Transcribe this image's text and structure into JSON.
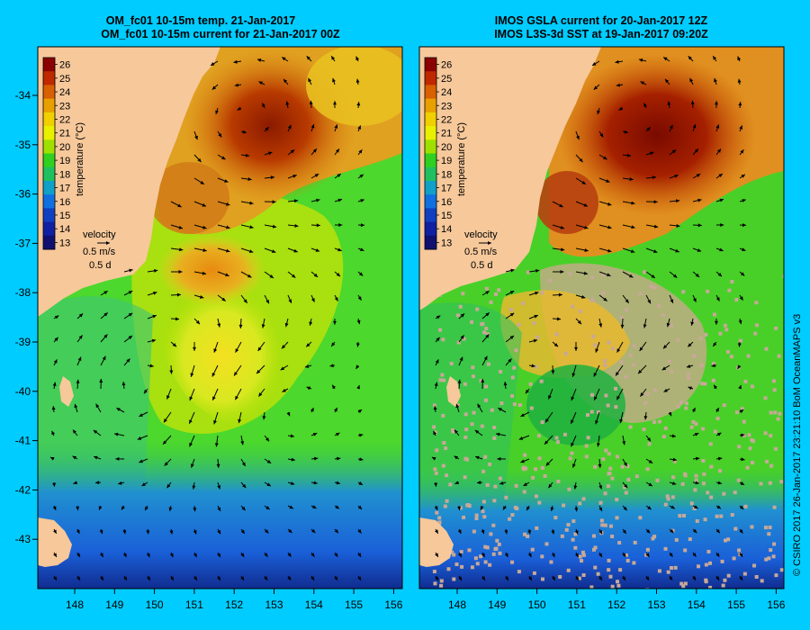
{
  "left_panel": {
    "title_line1": "OM_fc01 10-15m temp. 21-Jan-2017",
    "title_line2": "OM_fc01 10-15m current for 21-Jan-2017 00Z"
  },
  "right_panel": {
    "title_line1": "IMOS GSLA current for 20-Jan-2017 12Z",
    "title_line2": "IMOS L3S-3d SST at 19-Jan-2017 09:20Z"
  },
  "axes": {
    "longitude_ticks": [
      "148",
      "149",
      "150",
      "151",
      "152",
      "153",
      "154",
      "155",
      "156"
    ],
    "latitude_ticks": [
      "-34",
      "-35",
      "-36",
      "-37",
      "-38",
      "-39",
      "-40",
      "-41",
      "-42",
      "-43"
    ]
  },
  "colorbar": {
    "label": "temperature (°C)",
    "ticks": [
      "26",
      "25",
      "24",
      "23",
      "22",
      "21",
      "20",
      "19",
      "18",
      "17",
      "16",
      "15",
      "14",
      "13"
    ],
    "colors": [
      "#8b0000",
      "#c02800",
      "#d86000",
      "#e8a000",
      "#f0d000",
      "#e8f000",
      "#a0e000",
      "#30d020",
      "#20c060",
      "#10a0c8",
      "#1070e0",
      "#1040c0",
      "#1020a0",
      "#101070"
    ]
  },
  "legend": {
    "title": "velocity",
    "speed": "0.5 m/s",
    "duration": "0.5 d"
  },
  "colors": {
    "background": "#00ccff",
    "land": "#f6c89a",
    "missing_data": "#c8a898"
  },
  "credit": "© CSIRO 2017   26-Jan-2017 23:21:10 BoM OceanMAPS v3"
}
